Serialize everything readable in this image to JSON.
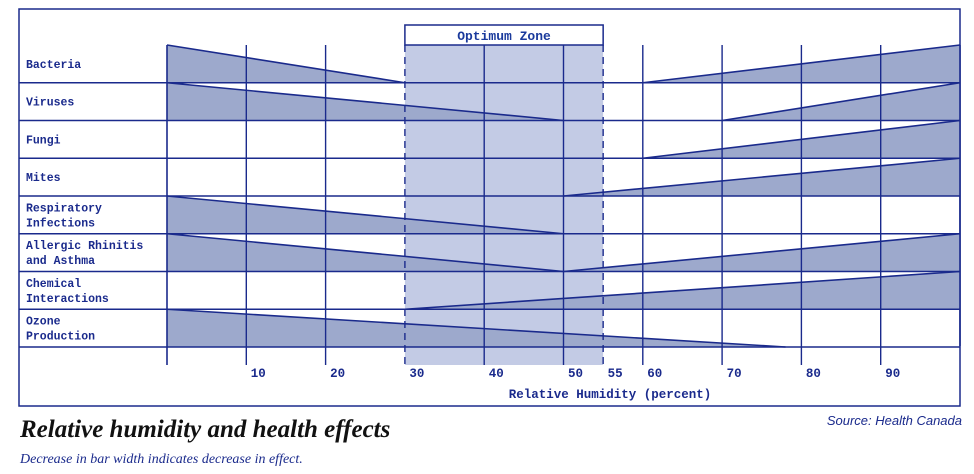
{
  "chart_data": {
    "type": "area",
    "title": "Relative humidity and health effects",
    "subtitle": "Decrease in bar width indicates decrease in effect.",
    "source": "Source: Health Canada",
    "xlabel": "Relative Humidity (percent)",
    "ylabel": "",
    "xlim": [
      0,
      100
    ],
    "x_ticks": [
      10,
      20,
      30,
      40,
      50,
      55,
      60,
      70,
      80,
      90
    ],
    "optimum_zone": {
      "label": "Optimum Zone",
      "range": [
        30,
        55
      ]
    },
    "grid": true,
    "colors": {
      "bar_fill": "#9da9cc",
      "zone_fill": "#c3cbe5",
      "line": "#1a2a8c"
    },
    "series": [
      {
        "name": "Bacteria",
        "label_lines": [
          "Bacteria"
        ],
        "segments": [
          {
            "from": [
              0,
              1
            ],
            "to": [
              30,
              0
            ]
          },
          {
            "from": [
              60,
              0
            ],
            "to": [
              100,
              1
            ]
          }
        ]
      },
      {
        "name": "Viruses",
        "label_lines": [
          "Viruses"
        ],
        "segments": [
          {
            "from": [
              0,
              1
            ],
            "to": [
              50,
              0
            ]
          },
          {
            "from": [
              70,
              0
            ],
            "to": [
              100,
              1
            ]
          }
        ]
      },
      {
        "name": "Fungi",
        "label_lines": [
          "Fungi"
        ],
        "segments": [
          {
            "from": [
              60,
              0
            ],
            "to": [
              100,
              1
            ]
          }
        ]
      },
      {
        "name": "Mites",
        "label_lines": [
          "Mites"
        ],
        "segments": [
          {
            "from": [
              50,
              0
            ],
            "to": [
              100,
              1
            ]
          }
        ]
      },
      {
        "name": "Respiratory Infections",
        "label_lines": [
          "Respiratory",
          "Infections"
        ],
        "segments": [
          {
            "from": [
              0,
              1
            ],
            "to": [
              50,
              0
            ]
          }
        ]
      },
      {
        "name": "Allergic Rhinitis and Asthma",
        "label_lines": [
          "Allergic Rhinitis",
          "and Asthma"
        ],
        "segments": [
          {
            "from": [
              0,
              1
            ],
            "to": [
              50,
              0
            ]
          },
          {
            "from": [
              50,
              0
            ],
            "to": [
              100,
              1
            ]
          }
        ]
      },
      {
        "name": "Chemical Interactions",
        "label_lines": [
          "Chemical",
          "Interactions"
        ],
        "segments": [
          {
            "from": [
              30,
              0
            ],
            "to": [
              100,
              1
            ]
          }
        ]
      },
      {
        "name": "Ozone Production",
        "label_lines": [
          "Ozone",
          "Production"
        ],
        "segments": [
          {
            "from": [
              0,
              1
            ],
            "to": [
              78,
              0
            ]
          }
        ]
      }
    ]
  }
}
